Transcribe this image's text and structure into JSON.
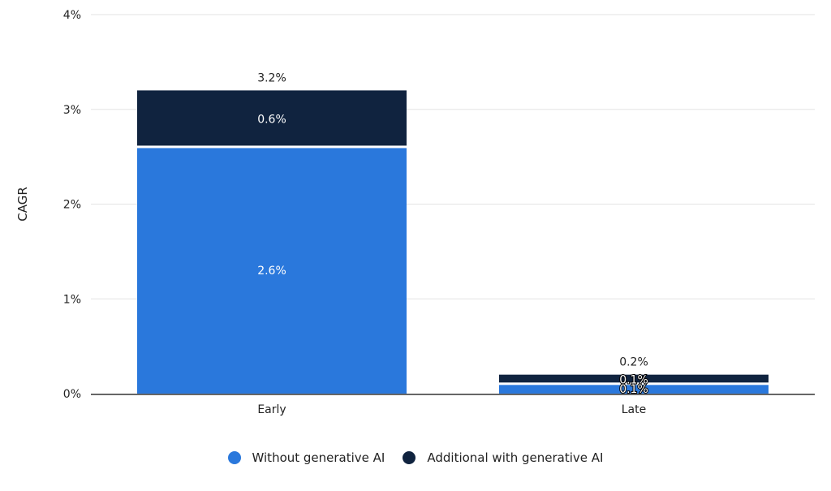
{
  "chart_data": {
    "type": "bar",
    "stacked": true,
    "categories": [
      "Early",
      "Late"
    ],
    "series": [
      {
        "name": "Without generative AI",
        "values": [
          2.6,
          0.1
        ],
        "color": "#2a78dc",
        "labels": [
          "2.6%",
          "0.1%"
        ]
      },
      {
        "name": "Additional with generative AI",
        "values": [
          0.6,
          0.1
        ],
        "color": "#10233f",
        "labels": [
          "0.6%",
          "0.1%"
        ]
      }
    ],
    "totals": [
      "3.2%",
      "0.2%"
    ],
    "ylabel": "CAGR",
    "xlabel": "",
    "ylim": [
      0,
      4
    ],
    "yticks": [
      "0%",
      "1%",
      "2%",
      "3%",
      "4%"
    ],
    "grid": true,
    "legend": "bottom"
  }
}
